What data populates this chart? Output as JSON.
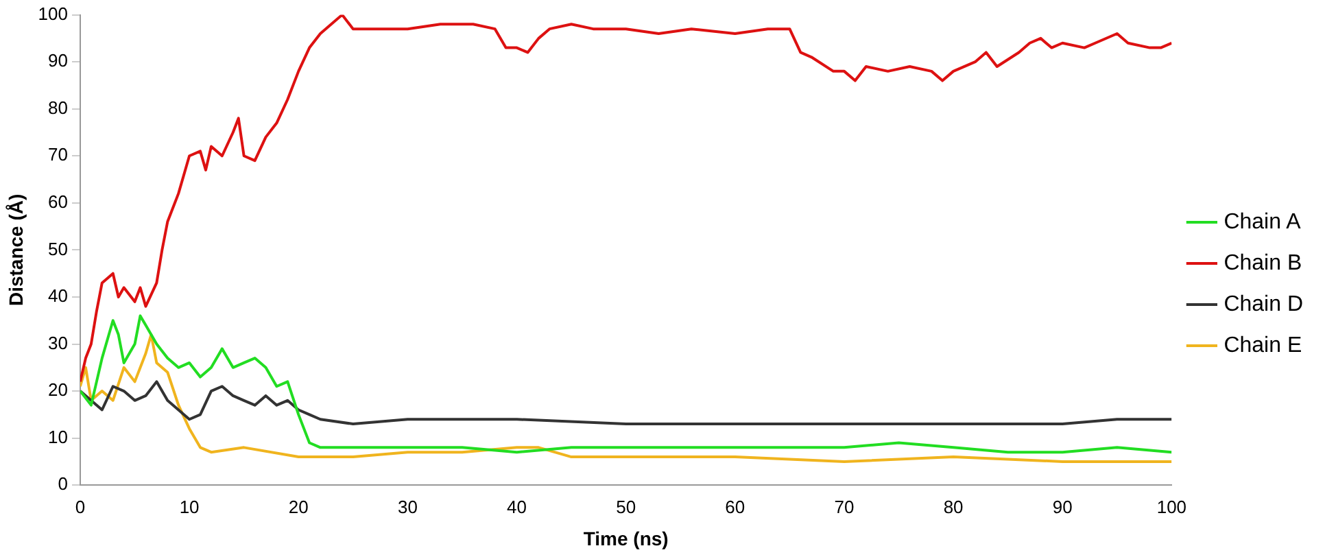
{
  "chart_data": {
    "type": "line",
    "xlabel": "Time (ns)",
    "ylabel": "Distance (Å)",
    "xlim": [
      0,
      100
    ],
    "xticks": [
      0,
      10,
      20,
      30,
      40,
      50,
      60,
      70,
      80,
      90,
      100
    ],
    "ylim": [
      0,
      100
    ],
    "yticks": [
      0,
      10,
      20,
      30,
      40,
      50,
      60,
      70,
      80,
      90,
      100
    ],
    "grid": false,
    "legend": "right",
    "marker": "none",
    "line_style": "solid",
    "series": [
      {
        "name": "Chain A",
        "color": "#22dd22",
        "x": [
          0,
          1,
          2,
          3,
          3.5,
          4,
          5,
          5.5,
          6,
          7,
          8,
          9,
          10,
          11,
          12,
          13,
          14,
          15,
          16,
          17,
          18,
          19,
          20,
          21,
          22,
          25,
          30,
          35,
          40,
          45,
          50,
          60,
          70,
          75,
          80,
          85,
          90,
          95,
          100
        ],
        "values": [
          20,
          17,
          27,
          35,
          32,
          26,
          30,
          36,
          34,
          30,
          27,
          25,
          26,
          23,
          25,
          29,
          25,
          26,
          27,
          25,
          21,
          22,
          15,
          9,
          8,
          8,
          8,
          8,
          7,
          8,
          8,
          8,
          8,
          9,
          8,
          7,
          7,
          8,
          7
        ]
      },
      {
        "name": "Chain B",
        "color": "#dd1111",
        "x": [
          0,
          0.5,
          1,
          1.5,
          2,
          3,
          3.5,
          4,
          5,
          5.5,
          6,
          7,
          7.5,
          8,
          9,
          10,
          11,
          11.5,
          12,
          13,
          14,
          14.5,
          15,
          16,
          17,
          18,
          19,
          20,
          21,
          22,
          23,
          24,
          25,
          26,
          28,
          30,
          33,
          36,
          38,
          39,
          40,
          41,
          42,
          43,
          45,
          47,
          50,
          53,
          56,
          60,
          63,
          65,
          66,
          67,
          69,
          70,
          71,
          72,
          74,
          76,
          78,
          79,
          80,
          82,
          83,
          84,
          86,
          87,
          88,
          89,
          90,
          92,
          93,
          95,
          96,
          98,
          99,
          100
        ],
        "values": [
          22,
          27,
          30,
          37,
          43,
          45,
          40,
          42,
          39,
          42,
          38,
          43,
          50,
          56,
          62,
          70,
          71,
          67,
          72,
          70,
          75,
          78,
          70,
          69,
          74,
          77,
          82,
          88,
          93,
          96,
          98,
          100,
          97,
          97,
          97,
          97,
          98,
          98,
          97,
          93,
          93,
          92,
          95,
          97,
          98,
          97,
          97,
          96,
          97,
          96,
          97,
          97,
          92,
          91,
          88,
          88,
          86,
          89,
          88,
          89,
          88,
          86,
          88,
          90,
          92,
          89,
          92,
          94,
          95,
          93,
          94,
          93,
          94,
          96,
          94,
          93,
          93,
          94
        ]
      },
      {
        "name": "Chain D",
        "color": "#333333",
        "x": [
          0,
          1,
          2,
          3,
          4,
          5,
          6,
          7,
          8,
          9,
          10,
          11,
          12,
          13,
          14,
          15,
          16,
          17,
          18,
          19,
          20,
          21,
          22,
          25,
          30,
          40,
          50,
          60,
          70,
          80,
          90,
          95,
          100
        ],
        "values": [
          20,
          18,
          16,
          21,
          20,
          18,
          19,
          22,
          18,
          16,
          14,
          15,
          20,
          21,
          19,
          18,
          17,
          19,
          17,
          18,
          16,
          15,
          14,
          13,
          14,
          14,
          13,
          13,
          13,
          13,
          13,
          14,
          14
        ]
      },
      {
        "name": "Chain E",
        "color": "#f0b41e",
        "x": [
          0,
          0.5,
          1,
          2,
          3,
          4,
          5,
          6,
          6.5,
          7,
          8,
          9,
          10,
          11,
          12,
          15,
          20,
          25,
          30,
          35,
          40,
          42,
          45,
          50,
          55,
          60,
          70,
          80,
          90,
          100
        ],
        "values": [
          21,
          25,
          18,
          20,
          18,
          25,
          22,
          28,
          32,
          26,
          24,
          17,
          12,
          8,
          7,
          8,
          6,
          6,
          7,
          7,
          8,
          8,
          6,
          6,
          6,
          6,
          5,
          6,
          5,
          5
        ]
      }
    ]
  }
}
